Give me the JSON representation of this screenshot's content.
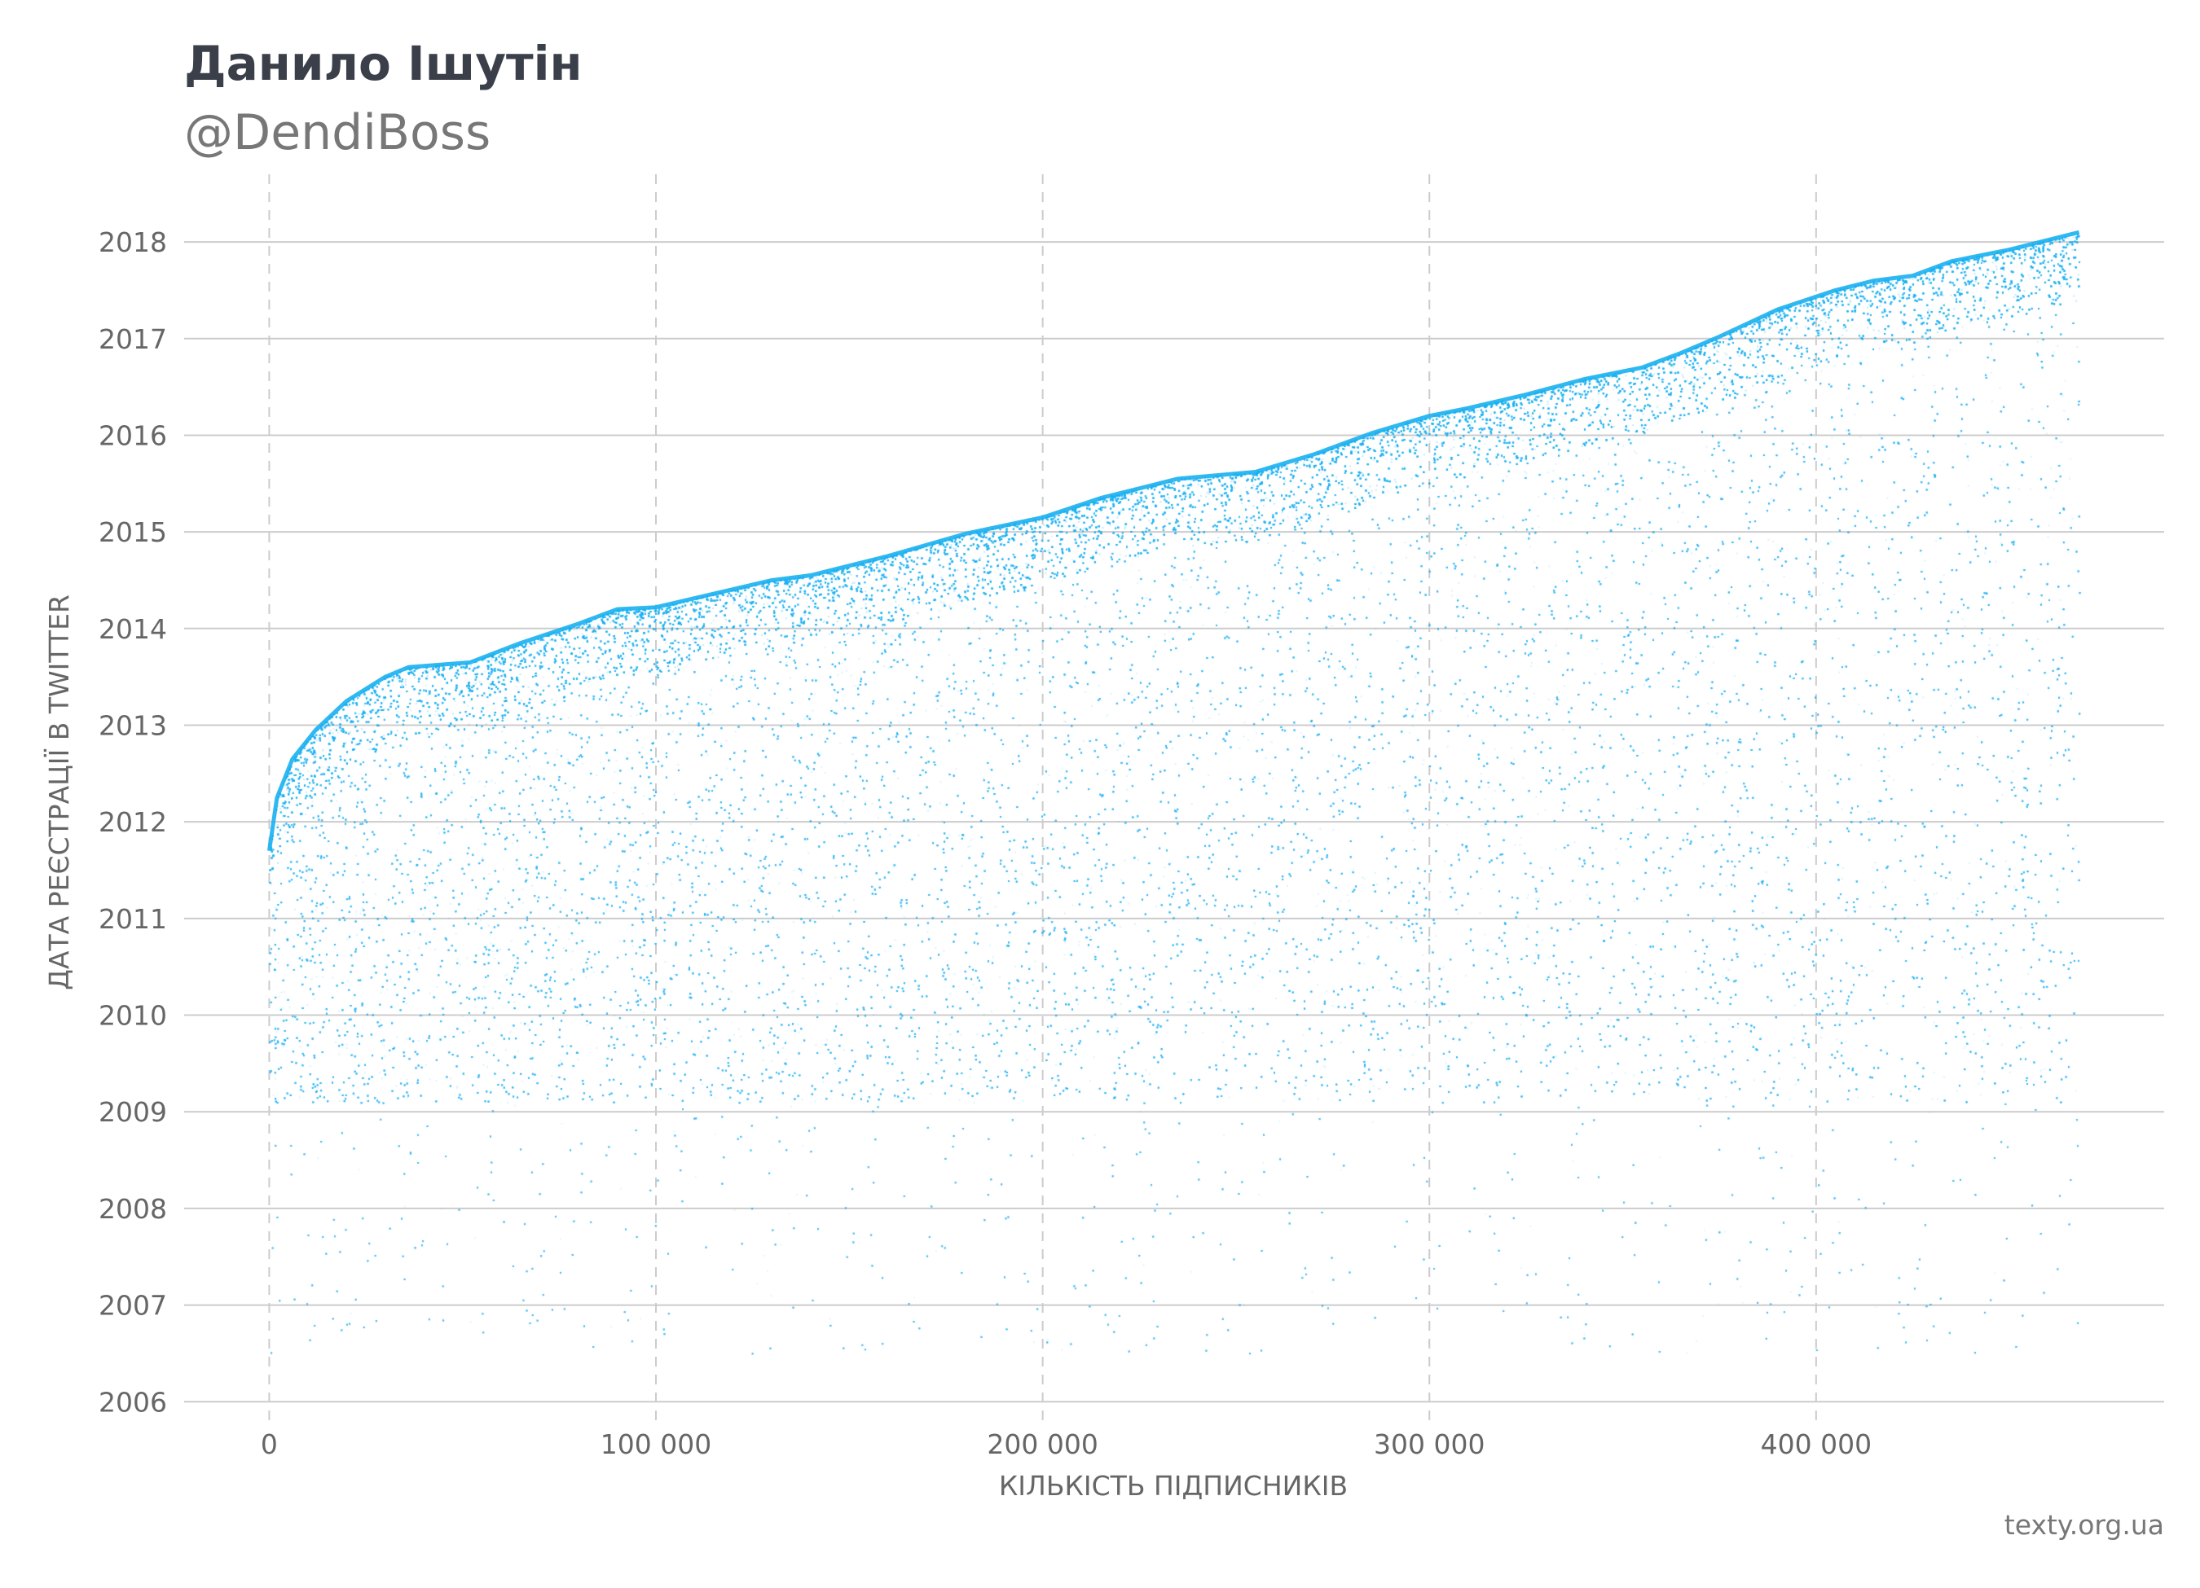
{
  "header": {
    "title": "Данило Ішутін",
    "subtitle": "@DendiBoss"
  },
  "credit": "texty.org.ua",
  "colors": {
    "points": "#1ab0f0",
    "grid_major": "#cccccc",
    "grid_dashed": "#cccccc",
    "title": "#3b3f4a",
    "text": "#666666"
  },
  "chart_data": {
    "type": "scatter",
    "xlabel": "КІЛЬКІСТЬ ПІДПИСНИКІВ",
    "ylabel": "ДАТА РЕЄСТРАЦІЇ В TWITTER",
    "xlim": [
      -22000,
      490000
    ],
    "ylim": [
      2005.8,
      2018.7
    ],
    "x_ticks": [
      0,
      100000,
      200000,
      300000,
      400000
    ],
    "x_tick_labels": [
      "0",
      "100 000",
      "200 000",
      "300 000",
      "400 000"
    ],
    "y_ticks": [
      2006,
      2007,
      2008,
      2009,
      2010,
      2011,
      2012,
      2013,
      2014,
      2015,
      2016,
      2017,
      2018
    ],
    "y_tick_labels": [
      "2006",
      "2007",
      "2008",
      "2009",
      "2010",
      "2011",
      "2012",
      "2013",
      "2014",
      "2015",
      "2016",
      "2017",
      "2018"
    ],
    "grid": {
      "horizontal": "solid",
      "vertical": "dashed"
    },
    "frontier": {
      "description_of_points": "follower order vs. account creation date; upper edge of point cloud",
      "x": [
        0,
        2000,
        6000,
        12000,
        20000,
        30000,
        36000,
        52000,
        65000,
        80000,
        90000,
        100000,
        130000,
        140000,
        160000,
        180000,
        200000,
        215000,
        235000,
        255000,
        270000,
        285000,
        300000,
        310000,
        325000,
        340000,
        355000,
        365000,
        375000,
        390000,
        405000,
        415000,
        425000,
        435000,
        450000,
        460000,
        468000
      ],
      "y": [
        2011.7,
        2012.25,
        2012.65,
        2012.95,
        2013.25,
        2013.5,
        2013.6,
        2013.65,
        2013.85,
        2014.05,
        2014.2,
        2014.22,
        2014.5,
        2014.55,
        2014.75,
        2014.98,
        2015.15,
        2015.35,
        2015.55,
        2015.62,
        2015.8,
        2016.02,
        2016.2,
        2016.28,
        2016.42,
        2016.58,
        2016.7,
        2016.85,
        2017.02,
        2017.3,
        2017.5,
        2017.6,
        2017.65,
        2017.8,
        2017.92,
        2018.02,
        2018.1
      ]
    },
    "density_floor_year": 2009.1,
    "approx_total_points": 468000
  }
}
